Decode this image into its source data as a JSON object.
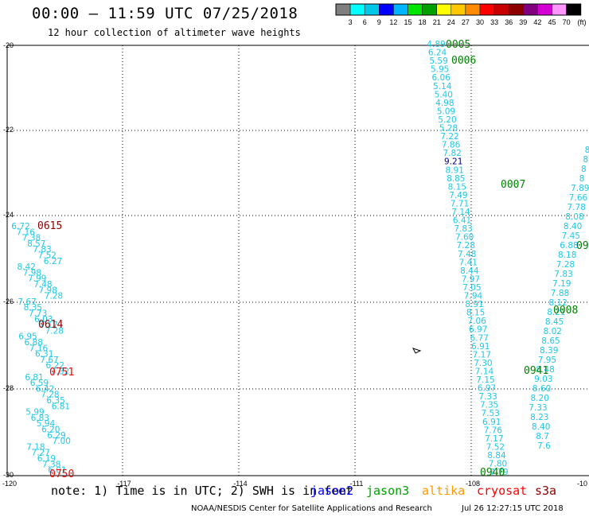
{
  "header": {
    "title": "00:00 — 11:59 UTC 07/25/2018",
    "subtitle": "12 hour collection of altimeter wave heights"
  },
  "legend": {
    "unit": "(ft)",
    "labels": [
      "3",
      "6",
      "9",
      "12",
      "15",
      "18",
      "21",
      "24",
      "27",
      "30",
      "33",
      "36",
      "39",
      "42",
      "45",
      "70"
    ],
    "colors": [
      "#7f7f7f",
      "#00ffff",
      "#00c8e6",
      "#0000ff",
      "#00b4ff",
      "#00e600",
      "#00a000",
      "#ffff00",
      "#ffc800",
      "#ff8c00",
      "#ff0000",
      "#c80000",
      "#8c0000",
      "#800080",
      "#d200d2",
      "#ff96ff",
      "#000000"
    ]
  },
  "axes": {
    "lat_labels": [
      "-20",
      "-22",
      "-24",
      "-26",
      "-28",
      "-30"
    ],
    "lon_labels": [
      "-120",
      "-117",
      "-114",
      "-111",
      "-108",
      "-10"
    ]
  },
  "tracks": [
    {
      "label": "0005",
      "color": "#008000"
    },
    {
      "label": "0006",
      "color": "#008000"
    },
    {
      "label": "0007",
      "color": "#008000"
    },
    {
      "label": "0008",
      "color": "#008000"
    },
    {
      "label": "09",
      "color": "#008000"
    },
    {
      "label": "0941",
      "color": "#008000"
    },
    {
      "label": "0940",
      "color": "#008000"
    },
    {
      "label": "0615",
      "color": "#8b0000"
    },
    {
      "label": "0614",
      "color": "#8b0000"
    },
    {
      "label": "0751",
      "color": "#ff0000"
    },
    {
      "label": "0750",
      "color": "#ff0000"
    }
  ],
  "swh_values": {
    "cyan_color": "#1ec8e6",
    "dark_color": "#000080",
    "dark_value": "9.21",
    "track_a": [
      "4.89",
      "6.24",
      "5.59",
      "5.95",
      "6.06",
      "5.14",
      "5.40",
      "4.98",
      "5.09",
      "5.20",
      "5.28",
      "7.22",
      "7.86",
      "7.82",
      "9.21",
      "8.91",
      "8.85",
      "8.15",
      "7.49",
      "7.71",
      "7.14",
      "6.41",
      "7.83",
      "7.60",
      "7.28",
      "7.48",
      "7.41",
      "8.44",
      "7.97",
      "7.05",
      "7.94",
      "8.91",
      "8.15",
      "7.06",
      "6.97",
      "6.77",
      "6.91",
      "7.17",
      "7.30",
      "7.14",
      "7.15",
      "6.97",
      "7.33",
      "7.35",
      "7.53",
      "6.91",
      "7.76",
      "7.17",
      "7.52",
      "8.84",
      "7.80",
      "7.79"
    ],
    "track_b": [
      "8",
      "8",
      "8",
      "8",
      "7.89",
      "7.66",
      "7.78",
      "8.08",
      "8.40",
      "7.45",
      "6.88",
      "8.18",
      "7.28",
      "7.83",
      "7.19",
      "7.88",
      "8.12",
      "8.21",
      "8.45",
      "8.02",
      "8.65",
      "8.39",
      "7.95",
      "8.48",
      "9.03",
      "8.60",
      "8.20",
      "7.33",
      "8.23",
      "8.40",
      "8.7",
      "7.6"
    ],
    "track_c": [
      "6.72",
      "7.16",
      "7.38",
      "8.57",
      "7.83",
      "7.52",
      "6.27",
      "8.42",
      "7.98",
      "7.99",
      "7.48",
      "7.98",
      "7.28",
      "7.67",
      "8.35",
      "7.73",
      "6.03",
      "7.17",
      "7.28",
      "6.95",
      "6.88",
      "7.16",
      "6.31",
      "7.67",
      "6.22",
      "7.32",
      "6.81",
      "6.59",
      "6.42",
      "7.28",
      "6.35",
      "6.81",
      "5.99",
      "6.83",
      "5.94",
      "6.20",
      "6.29",
      "7.00",
      "7.18",
      "7.27",
      "6.19",
      "7.38",
      "6.01"
    ]
  },
  "notes": {
    "prefix": "note: 1) Time is in UTC; 2) SWH is in feet",
    "missions": [
      {
        "label": "jason2",
        "color": "#0000ff"
      },
      {
        "label": "jason3",
        "color": "#00a000"
      },
      {
        "label": "altika",
        "color": "#ff9900"
      },
      {
        "label": "cryosat",
        "color": "#ff0000"
      },
      {
        "label": "s3a",
        "color": "#8b0000"
      }
    ]
  },
  "footer": {
    "credit": "NOAA/NESDIS Center for Satellite Applications and Research",
    "generated": "Jul 26 12:27:15 UTC 2018"
  }
}
